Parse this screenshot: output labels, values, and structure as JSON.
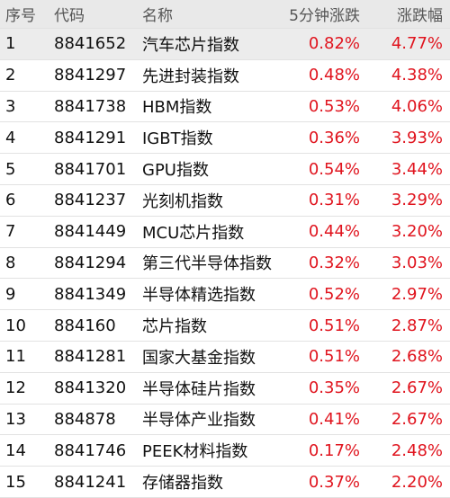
{
  "table": {
    "header": [
      "序号",
      "代码",
      "名称",
      "5分钟涨跌",
      "涨跌幅"
    ],
    "rows": [
      [
        "1",
        "8841652",
        "汽车芯片指数",
        "0.82%",
        "4.77%"
      ],
      [
        "2",
        "8841297",
        "先进封装指数",
        "0.48%",
        "4.38%"
      ],
      [
        "3",
        "8841738",
        "HBM指数",
        "0.53%",
        "4.06%"
      ],
      [
        "4",
        "8841291",
        "IGBT指数",
        "0.36%",
        "3.93%"
      ],
      [
        "5",
        "8841701",
        "GPU指数",
        "0.54%",
        "3.44%"
      ],
      [
        "6",
        "8841237",
        "光刻机指数",
        "0.31%",
        "3.29%"
      ],
      [
        "7",
        "8841449",
        "MCU芯片指数",
        "0.44%",
        "3.20%"
      ],
      [
        "8",
        "8841294",
        "第三代半导体指数",
        "0.32%",
        "3.03%"
      ],
      [
        "9",
        "8841349",
        "半导体精选指数",
        "0.52%",
        "2.97%"
      ],
      [
        "10",
        "884160",
        "芯片指数",
        "0.51%",
        "2.87%"
      ],
      [
        "11",
        "8841281",
        "国家大基金指数",
        "0.51%",
        "2.68%"
      ],
      [
        "12",
        "8841320",
        "半导体硅片指数",
        "0.35%",
        "2.67%"
      ],
      [
        "13",
        "884878",
        "半导体产业指数",
        "0.41%",
        "2.67%"
      ],
      [
        "14",
        "8841746",
        "PEEK材料指数",
        "0.17%",
        "2.48%"
      ],
      [
        "15",
        "8841241",
        "存储器指数",
        "0.37%",
        "2.20%"
      ]
    ]
  }
}
